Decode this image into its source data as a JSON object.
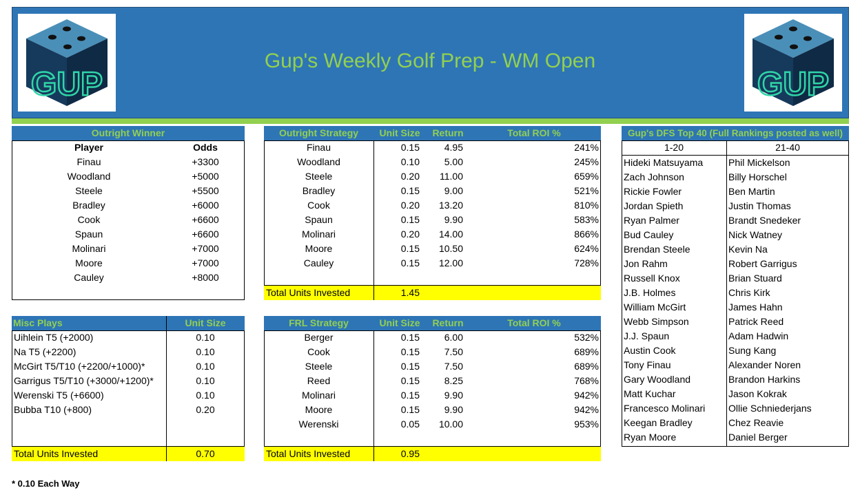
{
  "title": "Gup's Weekly Golf Prep - WM Open",
  "logo_text": "GUP",
  "outright": {
    "header": "Outright Winner",
    "col_player": "Player",
    "col_odds": "Odds",
    "rows": [
      [
        "Finau",
        "+3300"
      ],
      [
        "Woodland",
        "+5000"
      ],
      [
        "Steele",
        "+5500"
      ],
      [
        "Bradley",
        "+6000"
      ],
      [
        "Cook",
        "+6600"
      ],
      [
        "Spaun",
        "+6600"
      ],
      [
        "Molinari",
        "+7000"
      ],
      [
        "Moore",
        "+7000"
      ],
      [
        "Cauley",
        "+8000"
      ]
    ]
  },
  "strategy": {
    "header": "Outright Strategy",
    "col_unit": "Unit Size",
    "col_return": "Return",
    "col_roi": "Total ROI %",
    "rows": [
      [
        "Finau",
        "0.15",
        "4.95",
        "241%"
      ],
      [
        "Woodland",
        "0.10",
        "5.00",
        "245%"
      ],
      [
        "Steele",
        "0.20",
        "11.00",
        "659%"
      ],
      [
        "Bradley",
        "0.15",
        "9.00",
        "521%"
      ],
      [
        "Cook",
        "0.20",
        "13.20",
        "810%"
      ],
      [
        "Spaun",
        "0.15",
        "9.90",
        "583%"
      ],
      [
        "Molinari",
        "0.20",
        "14.00",
        "866%"
      ],
      [
        "Moore",
        "0.15",
        "10.50",
        "624%"
      ],
      [
        "Cauley",
        "0.15",
        "12.00",
        "728%"
      ]
    ],
    "total_label": "Total Units Invested",
    "total_value": "1.45"
  },
  "misc": {
    "header": "Misc Plays",
    "col_unit": "Unit Size",
    "rows": [
      [
        "Uihlein T5 (+2000)",
        "0.10"
      ],
      [
        "Na T5 (+2200)",
        "0.10"
      ],
      [
        "McGirt T5/T10 (+2200/+1000)*",
        "0.10"
      ],
      [
        "Garrigus T5/T10 (+3000/+1200)*",
        "0.10"
      ],
      [
        "Werenski T5 (+6600)",
        "0.10"
      ],
      [
        "Bubba T10 (+800)",
        "0.20"
      ]
    ],
    "total_label": "Total Units Invested",
    "total_value": "0.70"
  },
  "frl": {
    "header": "FRL Strategy",
    "col_unit": "Unit Size",
    "col_return": "Return",
    "col_roi": "Total ROI %",
    "rows": [
      [
        "Berger",
        "0.15",
        "6.00",
        "532%"
      ],
      [
        "Cook",
        "0.15",
        "7.50",
        "689%"
      ],
      [
        "Steele",
        "0.15",
        "7.50",
        "689%"
      ],
      [
        "Reed",
        "0.15",
        "8.25",
        "768%"
      ],
      [
        "Molinari",
        "0.15",
        "9.90",
        "942%"
      ],
      [
        "Moore",
        "0.15",
        "9.90",
        "942%"
      ],
      [
        "Werenski",
        "0.05",
        "10.00",
        "953%"
      ]
    ],
    "total_label": "Total Units Invested",
    "total_value": "0.95"
  },
  "dfs": {
    "header": "Gup's DFS Top 40 (Full Rankings posted as well)",
    "col1": "1-20",
    "col2": "21-40",
    "rows": [
      [
        "Hideki Matsuyama",
        "Phil Mickelson"
      ],
      [
        "Zach Johnson",
        "Billy Horschel"
      ],
      [
        "Rickie Fowler",
        "Ben Martin"
      ],
      [
        "Jordan Spieth",
        "Justin Thomas"
      ],
      [
        "Ryan Palmer",
        "Brandt Snedeker"
      ],
      [
        "Bud Cauley",
        "Nick Watney"
      ],
      [
        "Brendan Steele",
        "Kevin Na"
      ],
      [
        "Jon Rahm",
        "Robert Garrigus"
      ],
      [
        "Russell Knox",
        "Brian Stuard"
      ],
      [
        "J.B. Holmes",
        "Chris Kirk"
      ],
      [
        "William McGirt",
        "James Hahn"
      ],
      [
        "Webb Simpson",
        "Patrick Reed"
      ],
      [
        "J.J. Spaun",
        "Adam Hadwin"
      ],
      [
        "Austin Cook",
        "Sung Kang"
      ],
      [
        "Tony Finau",
        "Alexander Noren"
      ],
      [
        "Gary Woodland",
        "Brandon Harkins"
      ],
      [
        "Matt Kuchar",
        "Jason Kokrak"
      ],
      [
        "Francesco Molinari",
        "Ollie Schniederjans"
      ],
      [
        "Keegan Bradley",
        "Chez Reavie"
      ],
      [
        "Ryan Moore",
        "Daniel Berger"
      ]
    ]
  },
  "footnote": "* 0.10 Each Way",
  "colors": {
    "banner": "#2e75b6",
    "accent": "#92d050",
    "highlight": "#ffff00"
  }
}
